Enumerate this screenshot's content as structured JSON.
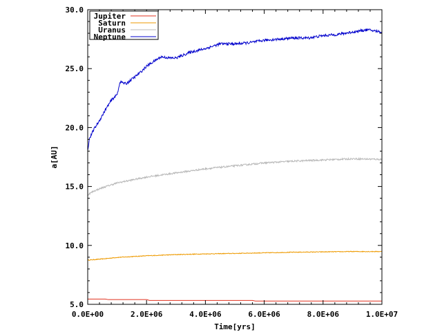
{
  "chart_data": {
    "type": "line",
    "title": "",
    "xlabel": "Time[yrs]",
    "ylabel": "a[AU]",
    "xlim": [
      0,
      10000000
    ],
    "ylim": [
      5.0,
      30.0
    ],
    "x_ticks": [
      0,
      2000000,
      4000000,
      6000000,
      8000000,
      10000000
    ],
    "x_tick_labels": [
      "0.0E+00",
      "2.0E+06",
      "4.0E+06",
      "6.0E+06",
      "8.0E+06",
      "1.0E+07"
    ],
    "y_ticks": [
      5.0,
      10.0,
      15.0,
      20.0,
      25.0,
      30.0
    ],
    "y_tick_labels": [
      "5.0",
      "10.0",
      "15.0",
      "20.0",
      "25.0",
      "30.0"
    ],
    "grid": false,
    "legend_position": "top-left",
    "series": [
      {
        "name": "Jupiter",
        "color": "#e0301e",
        "x": [
          0,
          600000,
          700000,
          2000000,
          2100000,
          5600000,
          5700000,
          10000000
        ],
        "y": [
          5.45,
          5.45,
          5.4,
          5.4,
          5.33,
          5.33,
          5.28,
          5.28
        ]
      },
      {
        "name": "Saturn",
        "color": "#ee9a00",
        "x": [
          0,
          500000,
          1000000,
          1500000,
          2000000,
          3000000,
          4000000,
          5000000,
          6000000,
          7000000,
          8000000,
          9000000,
          10000000
        ],
        "y": [
          8.75,
          8.85,
          8.98,
          9.05,
          9.12,
          9.22,
          9.28,
          9.32,
          9.37,
          9.42,
          9.45,
          9.48,
          9.48
        ]
      },
      {
        "name": "Uranus",
        "color": "#b8b8b8",
        "x": [
          0,
          200000,
          500000,
          1000000,
          1500000,
          2000000,
          3000000,
          4000000,
          5000000,
          6000000,
          7000000,
          8000000,
          9000000,
          10000000
        ],
        "y": [
          14.3,
          14.6,
          14.9,
          15.3,
          15.55,
          15.8,
          16.15,
          16.5,
          16.75,
          17.0,
          17.15,
          17.25,
          17.35,
          17.3
        ]
      },
      {
        "name": "Neptune",
        "color": "#0000cc",
        "x": [
          0,
          50000,
          200000,
          400000,
          600000,
          800000,
          1000000,
          1100000,
          1300000,
          1500000,
          1800000,
          2000000,
          2300000,
          2500000,
          2800000,
          3000000,
          3500000,
          4000000,
          4500000,
          5000000,
          5500000,
          6000000,
          6500000,
          7000000,
          7500000,
          8000000,
          8500000,
          9000000,
          9500000,
          10000000
        ],
        "y": [
          18.0,
          19.0,
          19.8,
          20.6,
          21.5,
          22.3,
          22.8,
          23.9,
          23.7,
          24.1,
          24.7,
          25.2,
          25.7,
          26.0,
          25.9,
          25.9,
          26.4,
          26.7,
          27.1,
          27.1,
          27.2,
          27.4,
          27.5,
          27.6,
          27.6,
          27.8,
          27.9,
          28.1,
          28.3,
          28.1
        ]
      }
    ]
  }
}
